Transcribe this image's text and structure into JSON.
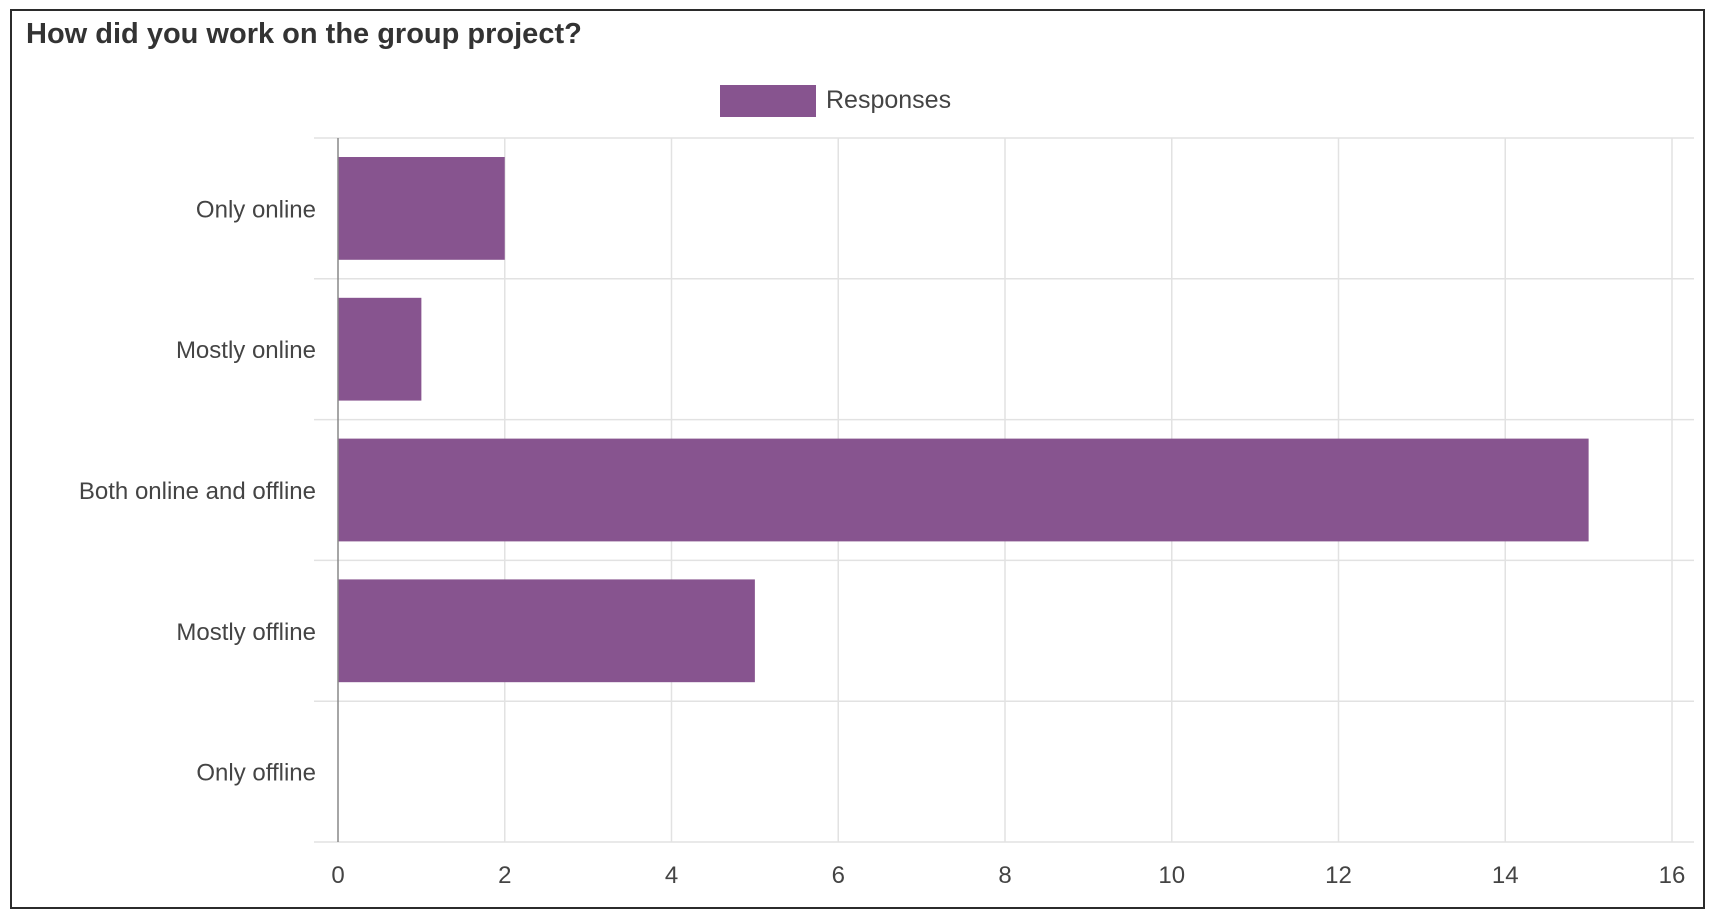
{
  "chart_data": {
    "type": "bar",
    "orientation": "horizontal",
    "title": "How did you work on the group project?",
    "categories": [
      "Only online",
      "Mostly online",
      "Both online and offline",
      "Mostly offline",
      "Only offline"
    ],
    "series": [
      {
        "name": "Responses",
        "values": [
          2,
          1,
          15,
          5,
          0
        ],
        "color": "#87548f"
      }
    ],
    "xlim": [
      0,
      16
    ],
    "xticks": [
      0,
      2,
      4,
      6,
      8,
      10,
      12,
      14,
      16
    ],
    "xlabel": "",
    "ylabel": "",
    "grid": true,
    "legend_position": "top"
  },
  "colors": {
    "grid": "#e2e2e2",
    "axis": "#888888",
    "frame": "#2b2b2b"
  }
}
